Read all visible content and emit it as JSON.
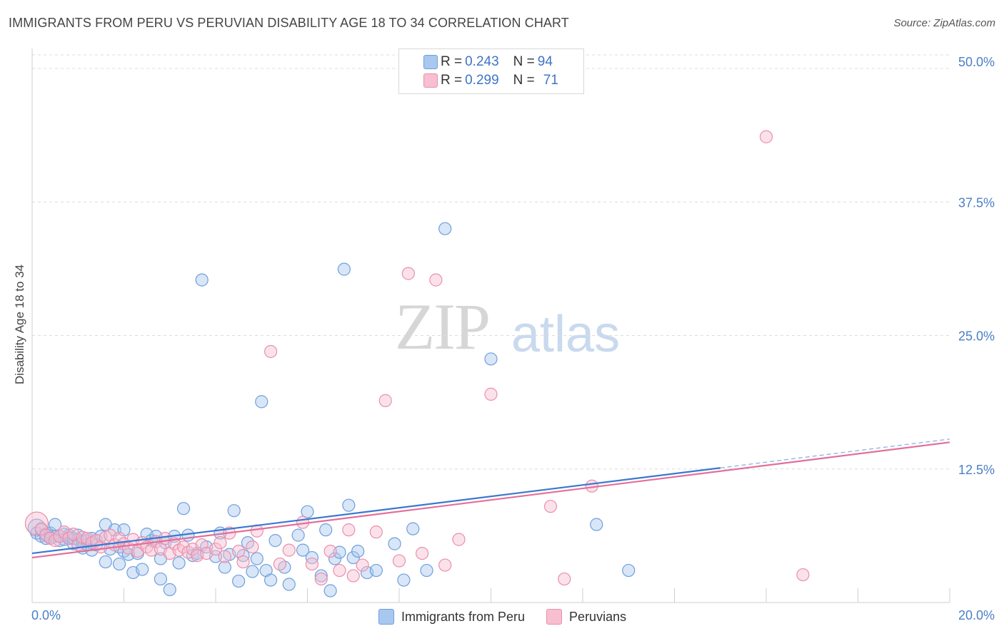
{
  "title": "IMMIGRANTS FROM PERU VS PERUVIAN DISABILITY AGE 18 TO 34 CORRELATION CHART",
  "source": "Source: ZipAtlas.com",
  "watermark_zip": "ZIP",
  "watermark_atlas": "atlas",
  "legend_top": {
    "row1": {
      "r_label": "R = ",
      "r_value": "0.243",
      "n_label": "N = ",
      "n_value": "94"
    },
    "row2": {
      "r_label": "R = ",
      "r_value": "0.299",
      "n_label": "N = ",
      "n_value": "71"
    }
  },
  "legend_bottom": {
    "series1": "Immigrants from Peru",
    "series2": "Peruvians"
  },
  "colors": {
    "blue_fill": "#a9c8f0",
    "blue_stroke": "#6f9fdc",
    "blue_line": "#3a78d0",
    "pink_fill": "#f7bfd0",
    "pink_stroke": "#e98fad",
    "pink_line": "#e26f9a",
    "tick_text": "#4a7fc6"
  },
  "chart_data": {
    "type": "scatter",
    "title": "IMMIGRANTS FROM PERU VS PERUVIAN DISABILITY AGE 18 TO 34 CORRELATION CHART",
    "xlabel": "",
    "ylabel": "Disability Age 18 to 34",
    "xlim": [
      0,
      20
    ],
    "ylim": [
      0,
      50
    ],
    "x_tick_labels": [
      "0.0%",
      "20.0%"
    ],
    "y_ticks": [
      12.5,
      25.0,
      37.5,
      50.0
    ],
    "y_tick_labels": [
      "12.5%",
      "25.0%",
      "37.5%",
      "50.0%"
    ],
    "grid": "horizontal dashed",
    "legend_position": "top-center",
    "series": [
      {
        "name": "Immigrants from Peru",
        "r": 0.243,
        "n": 94,
        "trend": {
          "x0": 0,
          "y0": 4.6,
          "x1": 15,
          "y1": 12.6,
          "dash_to_x": 20,
          "dash_to_y": 15.3
        },
        "points": [
          [
            0.1,
            7.0
          ],
          [
            0.1,
            6.5
          ],
          [
            0.2,
            6.2
          ],
          [
            0.2,
            6.8
          ],
          [
            0.3,
            6.0
          ],
          [
            0.3,
            6.4
          ],
          [
            0.4,
            6.1
          ],
          [
            0.4,
            6.5
          ],
          [
            0.5,
            6.2
          ],
          [
            0.5,
            7.3
          ],
          [
            0.6,
            5.8
          ],
          [
            0.6,
            6.2
          ],
          [
            0.7,
            6.4
          ],
          [
            0.7,
            5.9
          ],
          [
            0.8,
            6.1
          ],
          [
            0.8,
            6.3
          ],
          [
            0.9,
            5.5
          ],
          [
            0.9,
            6.0
          ],
          [
            1.0,
            5.9
          ],
          [
            1.0,
            6.3
          ],
          [
            1.1,
            5.7
          ],
          [
            1.1,
            5.1
          ],
          [
            1.2,
            5.4
          ],
          [
            1.2,
            5.8
          ],
          [
            1.3,
            4.9
          ],
          [
            1.3,
            6.0
          ],
          [
            1.4,
            5.4
          ],
          [
            1.5,
            6.2
          ],
          [
            1.6,
            7.3
          ],
          [
            1.6,
            3.8
          ],
          [
            1.7,
            5.0
          ],
          [
            1.8,
            6.8
          ],
          [
            1.9,
            5.2
          ],
          [
            1.9,
            3.6
          ],
          [
            2.0,
            4.8
          ],
          [
            2.0,
            6.8
          ],
          [
            2.1,
            4.5
          ],
          [
            2.2,
            2.8
          ],
          [
            2.3,
            4.6
          ],
          [
            2.4,
            3.1
          ],
          [
            2.5,
            6.4
          ],
          [
            2.6,
            5.8
          ],
          [
            2.7,
            6.2
          ],
          [
            2.8,
            4.1
          ],
          [
            2.8,
            2.2
          ],
          [
            2.9,
            5.6
          ],
          [
            3.0,
            1.2
          ],
          [
            3.1,
            6.2
          ],
          [
            3.2,
            3.7
          ],
          [
            3.3,
            8.8
          ],
          [
            3.4,
            6.3
          ],
          [
            3.5,
            4.4
          ],
          [
            3.6,
            4.6
          ],
          [
            3.7,
            30.2
          ],
          [
            3.8,
            5.2
          ],
          [
            4.0,
            4.3
          ],
          [
            4.1,
            6.5
          ],
          [
            4.2,
            3.3
          ],
          [
            4.3,
            4.5
          ],
          [
            4.4,
            8.6
          ],
          [
            4.5,
            2.0
          ],
          [
            4.6,
            4.4
          ],
          [
            4.7,
            5.6
          ],
          [
            4.8,
            2.9
          ],
          [
            4.9,
            4.1
          ],
          [
            5.0,
            18.8
          ],
          [
            5.1,
            3.0
          ],
          [
            5.2,
            2.1
          ],
          [
            5.3,
            5.8
          ],
          [
            5.5,
            3.3
          ],
          [
            5.6,
            1.7
          ],
          [
            5.8,
            6.3
          ],
          [
            5.9,
            4.9
          ],
          [
            6.0,
            8.5
          ],
          [
            6.1,
            4.2
          ],
          [
            6.3,
            2.5
          ],
          [
            6.4,
            6.8
          ],
          [
            6.5,
            1.1
          ],
          [
            6.6,
            4.1
          ],
          [
            6.7,
            4.7
          ],
          [
            6.8,
            31.2
          ],
          [
            6.9,
            9.1
          ],
          [
            7.0,
            4.2
          ],
          [
            7.1,
            4.8
          ],
          [
            7.3,
            2.8
          ],
          [
            7.5,
            3.0
          ],
          [
            7.9,
            5.5
          ],
          [
            8.1,
            2.1
          ],
          [
            8.3,
            6.9
          ],
          [
            8.6,
            3.0
          ],
          [
            9.0,
            35.0
          ],
          [
            10.0,
            22.8
          ],
          [
            12.3,
            7.3
          ],
          [
            13.0,
            3.0
          ]
        ]
      },
      {
        "name": "Peruvians",
        "r": 0.299,
        "n": 71,
        "trend": {
          "x0": 0,
          "y0": 4.2,
          "x1": 20,
          "y1": 15.0
        },
        "points": [
          [
            0.1,
            7.4
          ],
          [
            0.2,
            6.9
          ],
          [
            0.3,
            6.3
          ],
          [
            0.4,
            6.0
          ],
          [
            0.5,
            5.8
          ],
          [
            0.6,
            6.2
          ],
          [
            0.7,
            6.6
          ],
          [
            0.8,
            6.0
          ],
          [
            0.9,
            6.4
          ],
          [
            1.0,
            5.4
          ],
          [
            1.1,
            6.1
          ],
          [
            1.2,
            6.0
          ],
          [
            1.3,
            5.6
          ],
          [
            1.4,
            5.8
          ],
          [
            1.5,
            5.2
          ],
          [
            1.6,
            6.1
          ],
          [
            1.7,
            6.3
          ],
          [
            1.8,
            5.4
          ],
          [
            1.9,
            6.0
          ],
          [
            2.0,
            5.5
          ],
          [
            2.1,
            5.1
          ],
          [
            2.2,
            5.9
          ],
          [
            2.3,
            4.8
          ],
          [
            2.4,
            5.6
          ],
          [
            2.5,
            5.2
          ],
          [
            2.6,
            4.9
          ],
          [
            2.7,
            5.7
          ],
          [
            2.8,
            5.0
          ],
          [
            2.9,
            6.0
          ],
          [
            3.0,
            4.6
          ],
          [
            3.1,
            5.5
          ],
          [
            3.2,
            4.9
          ],
          [
            3.3,
            5.2
          ],
          [
            3.4,
            4.7
          ],
          [
            3.5,
            5.0
          ],
          [
            3.6,
            4.4
          ],
          [
            3.7,
            5.4
          ],
          [
            3.8,
            4.6
          ],
          [
            4.0,
            5.0
          ],
          [
            4.1,
            5.6
          ],
          [
            4.2,
            4.3
          ],
          [
            4.3,
            6.5
          ],
          [
            4.5,
            4.8
          ],
          [
            4.6,
            3.8
          ],
          [
            4.8,
            5.2
          ],
          [
            4.9,
            6.7
          ],
          [
            5.2,
            23.5
          ],
          [
            5.4,
            3.6
          ],
          [
            5.6,
            4.9
          ],
          [
            5.9,
            7.5
          ],
          [
            6.1,
            3.6
          ],
          [
            6.3,
            2.2
          ],
          [
            6.5,
            4.8
          ],
          [
            6.7,
            3.0
          ],
          [
            6.9,
            6.8
          ],
          [
            7.0,
            2.5
          ],
          [
            7.2,
            3.5
          ],
          [
            7.5,
            6.6
          ],
          [
            7.7,
            18.9
          ],
          [
            8.0,
            3.9
          ],
          [
            8.2,
            30.8
          ],
          [
            8.5,
            4.6
          ],
          [
            8.8,
            30.2
          ],
          [
            9.0,
            3.5
          ],
          [
            9.3,
            5.9
          ],
          [
            10.0,
            19.5
          ],
          [
            11.3,
            9.0
          ],
          [
            11.6,
            2.2
          ],
          [
            12.2,
            10.9
          ],
          [
            16.0,
            43.6
          ],
          [
            16.8,
            2.6
          ]
        ]
      }
    ]
  }
}
